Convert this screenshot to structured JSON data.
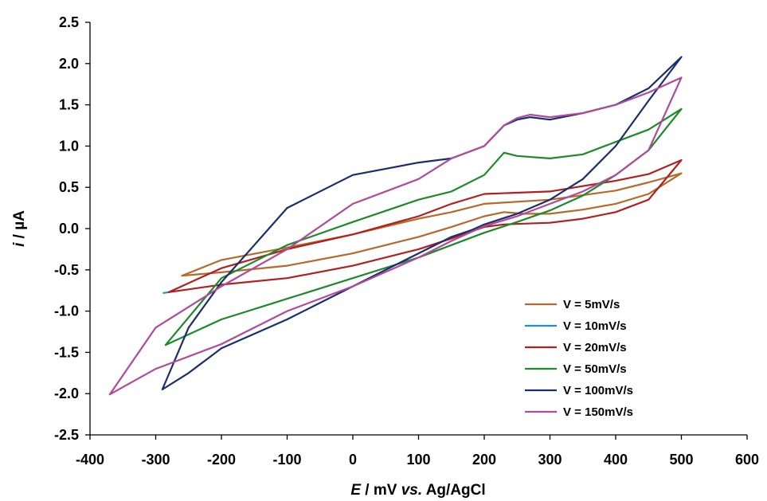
{
  "chart_data": {
    "type": "line",
    "title": "",
    "xlabel": {
      "italic_part": "E",
      "rest": " / mV ",
      "italic_part2": "vs.",
      "rest2": " Ag/AgCl"
    },
    "ylabel": {
      "italic_part": "i",
      "rest": " / µA"
    },
    "xlim": [
      -400,
      600
    ],
    "ylim": [
      -2.5,
      2.5
    ],
    "x_ticks": [
      -400,
      -300,
      -200,
      -100,
      0,
      100,
      200,
      300,
      400,
      500,
      600
    ],
    "x_tick_labels": [
      "-400",
      "-300",
      "-200",
      "-100",
      "0",
      "100",
      "200",
      "300",
      "400",
      "500",
      "600"
    ],
    "y_ticks": [
      2.5,
      2.0,
      1.5,
      1.0,
      0.5,
      0.0,
      -0.5,
      -1.0,
      -1.5,
      -2.0,
      -2.5
    ],
    "y_tick_labels": [
      "2.5",
      "2.0",
      "1.5",
      "1.0",
      "0.5",
      "0.0",
      "-0.5",
      "-1.0",
      "-1.5",
      "-2.0",
      "-2.5"
    ],
    "grid": false,
    "legend_position": "bottom-right",
    "series": [
      {
        "name": "V = 5mV/s",
        "color": "#b5692a",
        "x": [
          -260,
          -200,
          -100,
          0,
          100,
          150,
          200,
          230,
          260,
          300,
          350,
          400,
          450,
          500,
          500,
          450,
          400,
          300,
          200,
          150,
          100,
          0,
          -100,
          -200,
          -260
        ],
        "y": [
          -0.57,
          -0.53,
          -0.45,
          -0.3,
          -0.1,
          0.02,
          0.15,
          0.2,
          0.18,
          0.18,
          0.23,
          0.3,
          0.42,
          0.67,
          0.67,
          0.56,
          0.46,
          0.35,
          0.3,
          0.2,
          0.12,
          -0.07,
          -0.23,
          -0.38,
          -0.57
        ]
      },
      {
        "name": "V = 10mV/s",
        "color": "#1f8fd0",
        "x": [
          -288,
          -280
        ],
        "y": [
          -0.78,
          -0.77
        ]
      },
      {
        "name": "V = 20mV/s",
        "color": "#b02020",
        "x": [
          -280,
          -200,
          -100,
          0,
          100,
          150,
          200,
          230,
          260,
          300,
          350,
          400,
          450,
          500,
          500,
          450,
          400,
          300,
          200,
          150,
          100,
          0,
          -100,
          -200,
          -280
        ],
        "y": [
          -0.77,
          -0.68,
          -0.6,
          -0.45,
          -0.25,
          -0.12,
          0.02,
          0.05,
          0.06,
          0.07,
          0.12,
          0.2,
          0.35,
          0.83,
          0.83,
          0.66,
          0.58,
          0.45,
          0.42,
          0.3,
          0.15,
          -0.07,
          -0.25,
          -0.48,
          -0.77
        ]
      },
      {
        "name": "V = 50mV/s",
        "color": "#1d8a2a",
        "x": [
          -285,
          -200,
          -100,
          0,
          100,
          150,
          200,
          250,
          300,
          350,
          400,
          450,
          500,
          500,
          450,
          400,
          350,
          300,
          250,
          230,
          200,
          150,
          100,
          0,
          -100,
          -200,
          -285
        ],
        "y": [
          -1.41,
          -1.1,
          -0.85,
          -0.6,
          -0.35,
          -0.2,
          -0.05,
          0.08,
          0.22,
          0.4,
          0.65,
          0.95,
          1.45,
          1.45,
          1.2,
          1.05,
          0.9,
          0.85,
          0.88,
          0.92,
          0.65,
          0.45,
          0.35,
          0.08,
          -0.2,
          -0.6,
          -1.41
        ]
      },
      {
        "name": "V = 100mV/s",
        "color": "#1a2e6e",
        "x": [
          -290,
          -250,
          -200,
          -100,
          0,
          100,
          150,
          180,
          200,
          250,
          300,
          350,
          400,
          450,
          500,
          500,
          450,
          400,
          350,
          300,
          270,
          250,
          230,
          200,
          150,
          100,
          0,
          -100,
          -200,
          -250,
          -290
        ],
        "y": [
          -1.95,
          -1.75,
          -1.45,
          -1.1,
          -0.7,
          -0.3,
          -0.1,
          -0.02,
          0.05,
          0.18,
          0.35,
          0.6,
          1.0,
          1.55,
          2.08,
          2.08,
          1.7,
          1.5,
          1.4,
          1.32,
          1.35,
          1.32,
          1.25,
          1.0,
          0.85,
          0.8,
          0.65,
          0.25,
          -0.65,
          -1.2,
          -1.95
        ]
      },
      {
        "name": "V = 150mV/s",
        "color": "#b04a9a",
        "x": [
          -370,
          -300,
          -200,
          -100,
          0,
          100,
          150,
          200,
          250,
          300,
          350,
          400,
          450,
          500,
          500,
          450,
          400,
          350,
          300,
          270,
          250,
          230,
          200,
          150,
          100,
          0,
          -100,
          -200,
          -300,
          -370
        ],
        "y": [
          -2.01,
          -1.7,
          -1.4,
          -1.0,
          -0.7,
          -0.35,
          -0.15,
          0.03,
          0.15,
          0.3,
          0.45,
          0.65,
          0.95,
          1.83,
          1.83,
          1.65,
          1.5,
          1.4,
          1.35,
          1.38,
          1.34,
          1.25,
          1.0,
          0.85,
          0.6,
          0.3,
          -0.25,
          -0.7,
          -1.2,
          -2.01
        ]
      }
    ]
  }
}
